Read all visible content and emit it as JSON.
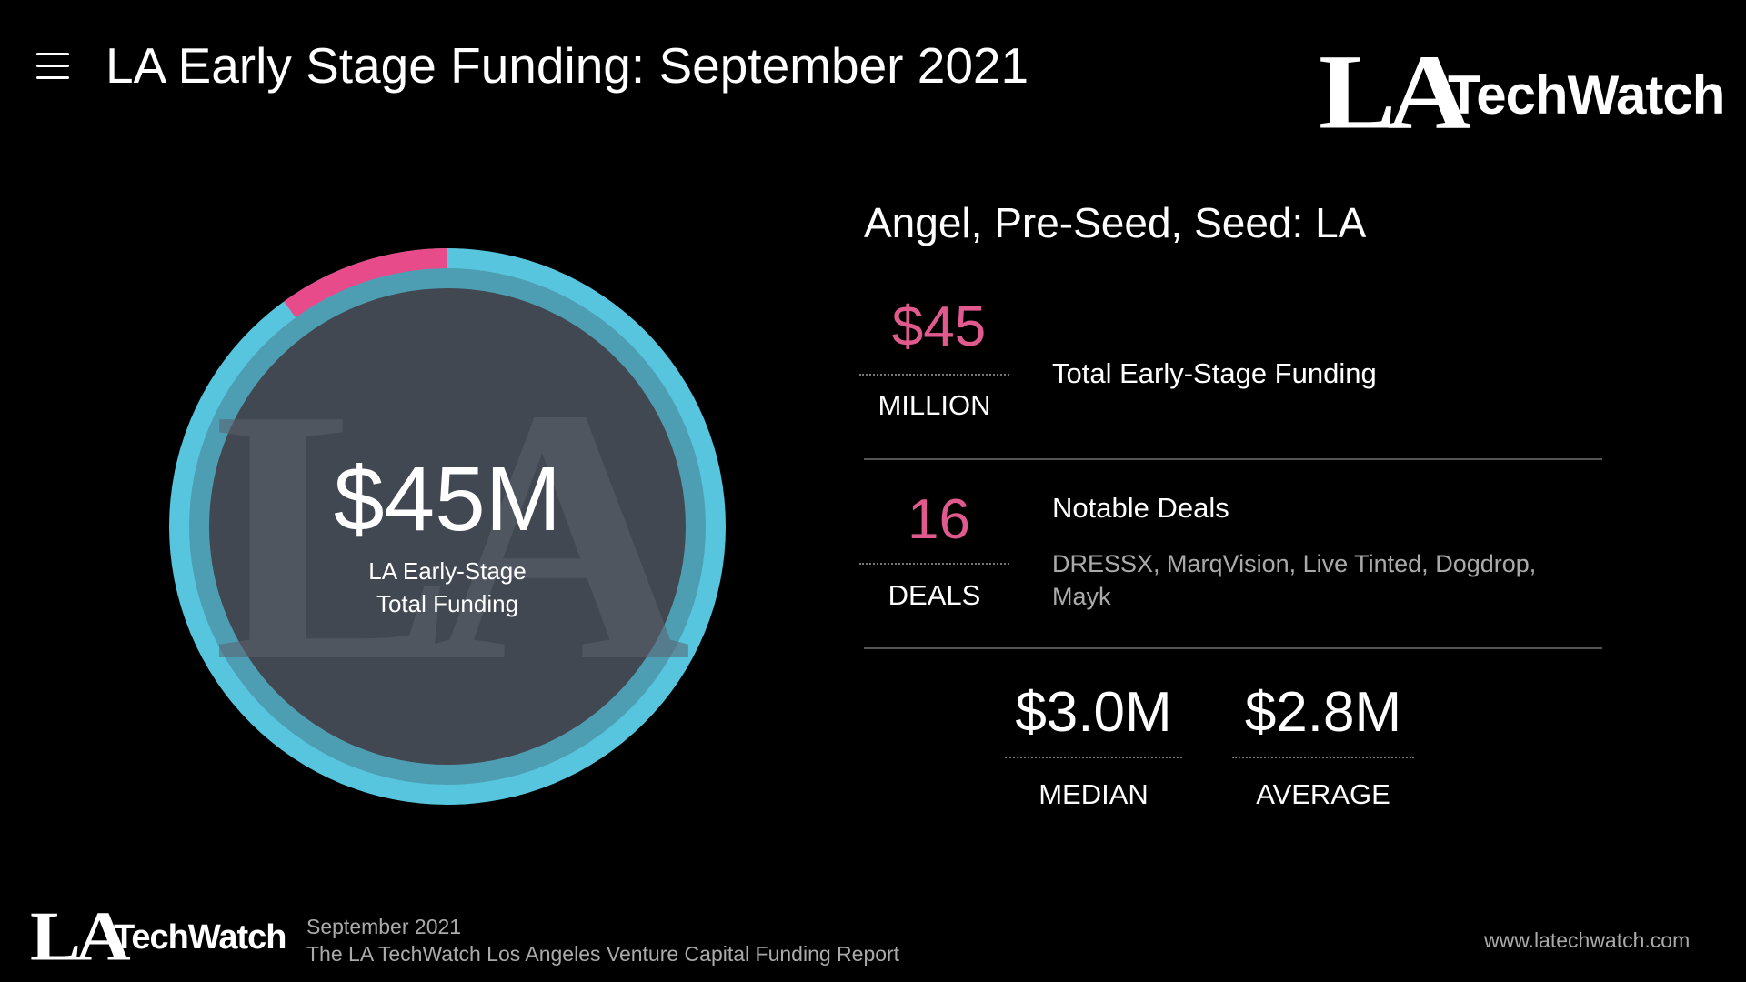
{
  "header": {
    "menu_icon": "hamburger-icon",
    "title": "LA Early Stage Funding: September 2021"
  },
  "logo": {
    "la": "LA",
    "techwatch": "TechWatch"
  },
  "donut": {
    "value": "$45M",
    "label_line1": "LA Early-Stage",
    "label_line2": "Total Funding",
    "watermark": "LA",
    "highlight_fraction": 0.1,
    "colors": {
      "ring": "#57c5dd",
      "ring_inner": "#4e9eb3",
      "highlight": "#e84b8a",
      "center": "#424852"
    }
  },
  "section": {
    "heading": "Angel, Pre-Seed, Seed: LA"
  },
  "total": {
    "number": "$45",
    "unit": "MILLION",
    "description": "Total Early-Stage Funding"
  },
  "deals": {
    "number": "16",
    "unit": "DEALS",
    "title": "Notable Deals",
    "list": "DRESSX, MarqVision, Live Tinted, Dogdrop, Mayk"
  },
  "median": {
    "value": "$3.0M",
    "label": "MEDIAN"
  },
  "average": {
    "value": "$2.8M",
    "label": "AVERAGE"
  },
  "footer": {
    "date": "September 2021",
    "report": "The LA TechWatch Los Angeles Venture Capital Funding Report",
    "url": "www.latechwatch.com"
  },
  "colors": {
    "accent": "#e05a8e",
    "background": "#000000"
  }
}
